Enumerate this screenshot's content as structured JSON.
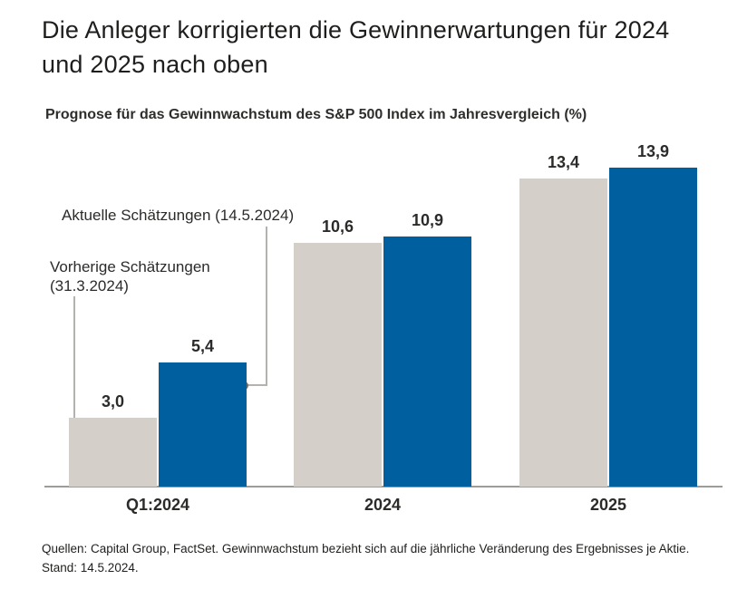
{
  "header": {
    "title": "Die Anleger korrigierten die Gewinnerwartungen für 2024 und 2025 nach oben",
    "subtitle": "Prognose für das Gewinnwachstum des S&P 500 Index im Jahresvergleich (%)"
  },
  "annotations": {
    "current": "Aktuelle Schätzungen (14.5.2024)",
    "previous_line1": "Vorherige Schätzungen",
    "previous_line2": "(31.3.2024)"
  },
  "footer": {
    "text": "Quellen: Capital Group, FactSet. Gewinnwachstum bezieht sich auf die jährliche Veränderung des Ergebnisses je Aktie. Stand: 14.5.2024."
  },
  "colors": {
    "previous_bar": "#d4d0c9",
    "current_bar": "#005f9e",
    "axis_line": "#9c9c98",
    "callout_line": "#b3b2ad",
    "callout_dot": "#716f6a",
    "text": "#1e1e1c"
  },
  "chart_data": {
    "type": "bar",
    "title": "Die Anleger korrigierten die Gewinnerwartungen für 2024 und 2025 nach oben",
    "subtitle": "Prognose für das Gewinnwachstum des S&P 500 Index im Jahresvergleich (%)",
    "categories": [
      "Q1:2024",
      "2024",
      "2025"
    ],
    "series": [
      {
        "name": "Vorherige Schätzungen (31.3.2024)",
        "values": [
          3.0,
          10.6,
          13.4
        ],
        "value_labels": [
          "3,0",
          "10,6",
          "13,4"
        ],
        "color": "#d4d0c9"
      },
      {
        "name": "Aktuelle Schätzungen (14.5.2024)",
        "values": [
          5.4,
          10.9,
          13.9
        ],
        "value_labels": [
          "5,4",
          "10,9",
          "13,9"
        ],
        "color": "#005f9e"
      }
    ],
    "xlabel": "",
    "ylabel": "",
    "ylim": [
      0,
      15
    ],
    "grid": false,
    "legend_position": "callout-annotations",
    "value_labels_shown": true,
    "source_note": "Quellen: Capital Group, FactSet. Gewinnwachstum bezieht sich auf die jährliche Veränderung des Ergebnisses je Aktie. Stand: 14.5.2024."
  }
}
